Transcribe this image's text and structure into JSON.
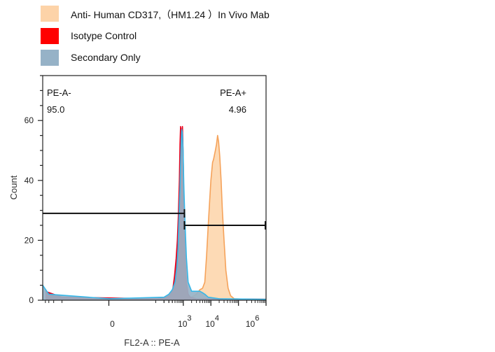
{
  "chart_data": {
    "type": "histogram",
    "xlabel": "FL2-A :: PE-A",
    "ylabel": "Count",
    "ylim": [
      0,
      75
    ],
    "x_scale": "biexponential",
    "y_ticks": [
      0,
      20,
      40,
      60
    ],
    "x_tick_labels": [
      {
        "base": "0",
        "exp": ""
      },
      {
        "base": "10",
        "exp": "3"
      },
      {
        "base": "10",
        "exp": "4"
      },
      {
        "base": "10",
        "exp": "6"
      }
    ],
    "series": [
      {
        "name": "Anti- Human CD317,（HM1.24 ）In Vivo Mab",
        "color": "#f5a25a",
        "fill": "#fdd3a8",
        "values": [
          [
            0,
            0.5
          ],
          [
            1200,
            0.5
          ],
          [
            2000,
            1
          ],
          [
            3000,
            2
          ],
          [
            4000,
            3.5
          ],
          [
            5000,
            4
          ],
          [
            6000,
            6
          ],
          [
            7000,
            15
          ],
          [
            8000,
            25
          ],
          [
            9000,
            33
          ],
          [
            10000,
            40
          ],
          [
            11500,
            46
          ],
          [
            12500,
            47
          ],
          [
            14500,
            50
          ],
          [
            16000,
            52
          ],
          [
            17500,
            55
          ],
          [
            19000,
            53
          ],
          [
            21000,
            48
          ],
          [
            23500,
            40
          ],
          [
            26000,
            30
          ],
          [
            30000,
            20
          ],
          [
            35000,
            10
          ],
          [
            42000,
            4
          ],
          [
            52000,
            1.5
          ],
          [
            70000,
            0.5
          ],
          [
            200000,
            0.3
          ],
          [
            1000000,
            0.3
          ]
        ]
      },
      {
        "name": "Isotype Control",
        "color": "#e8001c",
        "fill": "#ff0000",
        "values": [
          [
            -400,
            3
          ],
          [
            -100,
            1
          ],
          [
            100,
            0.5
          ],
          [
            250,
            1
          ],
          [
            350,
            2
          ],
          [
            420,
            4
          ],
          [
            480,
            8
          ],
          [
            550,
            14
          ],
          [
            610,
            20
          ],
          [
            660,
            28
          ],
          [
            720,
            40
          ],
          [
            760,
            52
          ],
          [
            795,
            58
          ],
          [
            815,
            57
          ],
          [
            840,
            50
          ],
          [
            870,
            54
          ],
          [
            900,
            57
          ],
          [
            930,
            58
          ],
          [
            960,
            54
          ],
          [
            1000,
            45
          ],
          [
            1060,
            30
          ],
          [
            1150,
            15
          ],
          [
            1300,
            6
          ],
          [
            1500,
            2
          ],
          [
            1800,
            1
          ],
          [
            3000,
            0.5
          ],
          [
            1000000,
            0.3
          ]
        ]
      },
      {
        "name": "Secondary Only",
        "color": "#36b7e8",
        "fill": "#96b2c7",
        "values": [
          [
            -500,
            5
          ],
          [
            -300,
            2
          ],
          [
            0,
            0.5
          ],
          [
            200,
            1
          ],
          [
            300,
            2
          ],
          [
            400,
            3.5
          ],
          [
            500,
            6
          ],
          [
            580,
            11
          ],
          [
            640,
            17
          ],
          [
            700,
            28
          ],
          [
            760,
            38
          ],
          [
            810,
            48
          ],
          [
            850,
            54
          ],
          [
            880,
            57
          ],
          [
            920,
            56
          ],
          [
            980,
            50
          ],
          [
            1050,
            38
          ],
          [
            1150,
            26
          ],
          [
            1300,
            14
          ],
          [
            1500,
            6
          ],
          [
            2000,
            3
          ],
          [
            3000,
            3
          ],
          [
            4000,
            3
          ],
          [
            5000,
            2.5
          ],
          [
            6000,
            2
          ],
          [
            8000,
            1
          ],
          [
            20000,
            0.5
          ],
          [
            1000000,
            0.3
          ]
        ]
      }
    ],
    "gates": [
      {
        "name": "PE-A-",
        "value": "95.0",
        "x_range": [
          -500,
          1100
        ],
        "y": 29
      },
      {
        "name": "PE-A+",
        "value": "4.96",
        "x_range": [
          1100,
          1000000
        ],
        "y": 25
      }
    ]
  }
}
